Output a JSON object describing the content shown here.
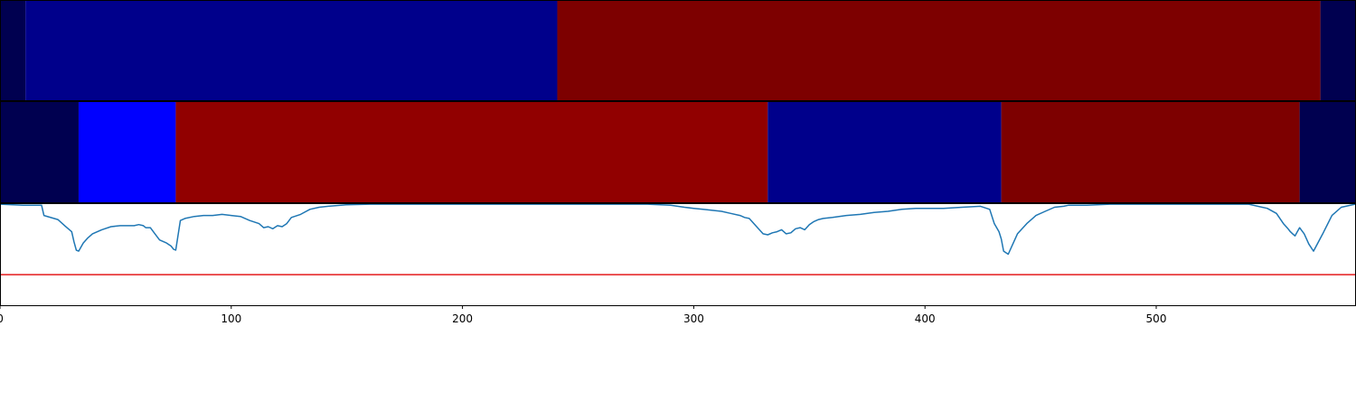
{
  "chart_data": {
    "type": "segmentation",
    "xlim": [
      0,
      586
    ],
    "x_ticks": [
      0,
      100,
      200,
      300,
      400,
      500
    ],
    "colors": {
      "dark_navy": "#000050",
      "navy": "#00008b",
      "blue": "#0000ff",
      "red": "#910000",
      "maroon": "#7d0000",
      "line": "#1f77b4",
      "threshold": "#e41a1c"
    },
    "rows": [
      {
        "segments": [
          {
            "start": 0,
            "end": 11,
            "color": "dark_navy"
          },
          {
            "start": 11,
            "end": 241,
            "color": "navy"
          },
          {
            "start": 241,
            "end": 571,
            "color": "maroon"
          },
          {
            "start": 571,
            "end": 586,
            "color": "dark_navy"
          }
        ]
      },
      {
        "segments": [
          {
            "start": 0,
            "end": 34,
            "color": "dark_navy"
          },
          {
            "start": 34,
            "end": 76,
            "color": "blue"
          },
          {
            "start": 76,
            "end": 332,
            "color": "red"
          },
          {
            "start": 332,
            "end": 433,
            "color": "navy"
          },
          {
            "start": 433,
            "end": 562,
            "color": "maroon"
          },
          {
            "start": 562,
            "end": 586,
            "color": "dark_navy"
          }
        ]
      }
    ],
    "line_panel": {
      "ylim": [
        0,
        1
      ],
      "threshold": 0.3,
      "series": {
        "x": [
          0,
          10,
          18,
          19,
          25,
          28,
          31,
          32,
          33,
          34,
          36,
          38,
          40,
          44,
          48,
          52,
          56,
          58,
          60,
          62,
          63,
          65,
          67,
          69,
          72,
          74,
          75,
          76,
          78,
          80,
          84,
          88,
          92,
          96,
          100,
          104,
          108,
          112,
          114,
          116,
          118,
          120,
          122,
          124,
          126,
          130,
          134,
          138,
          142,
          150,
          160,
          180,
          200,
          220,
          240,
          260,
          280,
          290,
          296,
          300,
          304,
          308,
          312,
          316,
          320,
          322,
          324,
          330,
          332,
          334,
          336,
          338,
          340,
          342,
          344,
          346,
          348,
          350,
          352,
          354,
          356,
          360,
          366,
          372,
          378,
          384,
          390,
          396,
          402,
          408,
          416,
          424,
          428,
          430,
          432,
          433,
          434,
          436,
          438,
          440,
          444,
          448,
          452,
          456,
          460,
          462,
          470,
          480,
          500,
          520,
          540,
          548,
          552,
          555,
          557,
          558,
          559,
          560,
          562,
          564,
          566,
          568,
          572,
          576,
          580,
          586
        ],
        "y": [
          0.99,
          0.98,
          0.98,
          0.88,
          0.84,
          0.78,
          0.72,
          0.62,
          0.54,
          0.53,
          0.61,
          0.66,
          0.7,
          0.74,
          0.77,
          0.78,
          0.78,
          0.78,
          0.79,
          0.78,
          0.76,
          0.76,
          0.7,
          0.64,
          0.61,
          0.58,
          0.55,
          0.54,
          0.83,
          0.85,
          0.87,
          0.88,
          0.88,
          0.89,
          0.88,
          0.87,
          0.83,
          0.8,
          0.76,
          0.77,
          0.75,
          0.78,
          0.77,
          0.8,
          0.86,
          0.89,
          0.94,
          0.96,
          0.97,
          0.985,
          0.99,
          0.99,
          0.99,
          0.99,
          0.99,
          0.99,
          0.99,
          0.98,
          0.96,
          0.95,
          0.94,
          0.93,
          0.92,
          0.9,
          0.88,
          0.86,
          0.85,
          0.7,
          0.69,
          0.71,
          0.72,
          0.74,
          0.7,
          0.71,
          0.75,
          0.76,
          0.74,
          0.79,
          0.82,
          0.84,
          0.85,
          0.86,
          0.88,
          0.89,
          0.91,
          0.92,
          0.94,
          0.95,
          0.95,
          0.95,
          0.96,
          0.97,
          0.94,
          0.8,
          0.72,
          0.65,
          0.53,
          0.5,
          0.6,
          0.7,
          0.8,
          0.88,
          0.92,
          0.96,
          0.97,
          0.98,
          0.98,
          0.99,
          0.99,
          0.99,
          0.99,
          0.95,
          0.9,
          0.8,
          0.75,
          0.72,
          0.7,
          0.68,
          0.76,
          0.7,
          0.6,
          0.53,
          0.7,
          0.88,
          0.96,
          0.99
        ]
      }
    }
  }
}
